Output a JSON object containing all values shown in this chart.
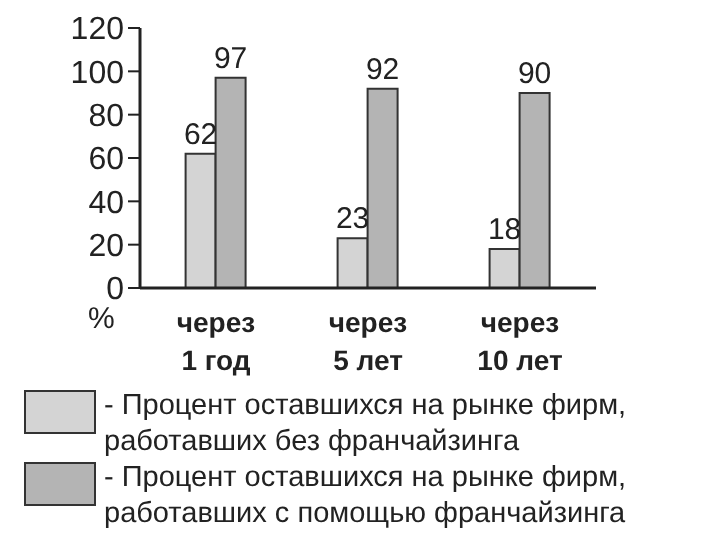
{
  "chart_data": {
    "type": "bar",
    "ylabel": "%",
    "categories": [
      "через\n1 год",
      "через\n5 лет",
      "через\n10 лет"
    ],
    "series": [
      {
        "name": "- Процент оставшихся на рынке фирм,\nработавших без франчайзинга",
        "color": "#d4d4d4",
        "values": [
          62,
          23,
          18
        ]
      },
      {
        "name": "- Процент оставшихся на рынке фирм,\nработавших с помощью франчайзинга",
        "color": "#b4b4b4",
        "values": [
          97,
          92,
          90
        ]
      }
    ],
    "ylim": [
      0,
      120
    ],
    "yticks": [
      0,
      20,
      40,
      60,
      80,
      100,
      120
    ],
    "data_labels": true,
    "grid": false,
    "legend": "bottom"
  }
}
